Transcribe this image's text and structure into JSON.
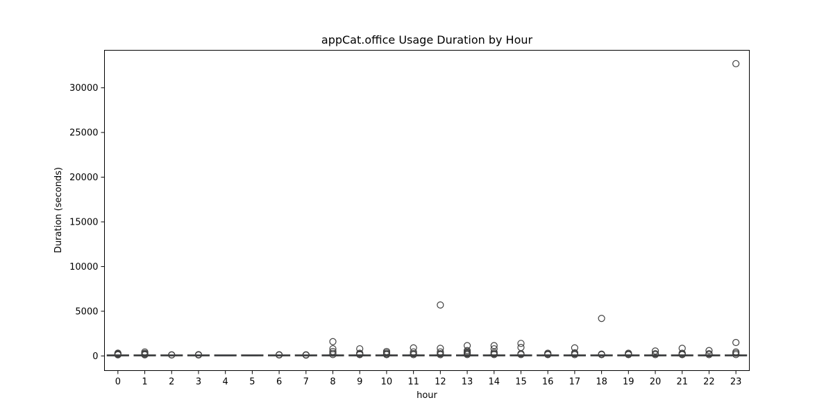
{
  "chart_data": {
    "type": "box",
    "title": "appCat.office Usage Duration by Hour",
    "xlabel": "hour",
    "ylabel": "Duration (seconds)",
    "categories": [
      "0",
      "1",
      "2",
      "3",
      "4",
      "5",
      "6",
      "7",
      "8",
      "9",
      "10",
      "11",
      "12",
      "13",
      "14",
      "15",
      "16",
      "17",
      "18",
      "19",
      "20",
      "21",
      "22",
      "23"
    ],
    "ylim": [
      -1640,
      34200
    ],
    "yticks": [
      0,
      5000,
      10000,
      15000,
      20000,
      25000,
      30000
    ],
    "grid": false,
    "legend": "none",
    "colors": {
      "box_fill": "#3b75af",
      "line": "#3f3f3f",
      "outlier": "#3f3f3f"
    },
    "boxes": [
      {
        "hour": "0",
        "q1": 5,
        "median": 20,
        "q3": 45,
        "whisker_low": 1,
        "whisker_high": 100,
        "outliers": [
          120,
          180,
          250,
          310
        ]
      },
      {
        "hour": "1",
        "q1": 5,
        "median": 20,
        "q3": 45,
        "whisker_low": 1,
        "whisker_high": 100,
        "outliers": [
          120,
          200,
          300,
          450
        ]
      },
      {
        "hour": "2",
        "q1": 5,
        "median": 15,
        "q3": 35,
        "whisker_low": 1,
        "whisker_high": 80,
        "outliers": [
          100,
          130
        ]
      },
      {
        "hour": "3",
        "q1": 5,
        "median": 15,
        "q3": 35,
        "whisker_low": 1,
        "whisker_high": 80,
        "outliers": [
          100,
          150
        ]
      },
      {
        "hour": "4",
        "q1": 5,
        "median": 10,
        "q3": 20,
        "whisker_low": 1,
        "whisker_high": 40,
        "outliers": []
      },
      {
        "hour": "5",
        "q1": 5,
        "median": 15,
        "q3": 30,
        "whisker_low": 1,
        "whisker_high": 60,
        "outliers": []
      },
      {
        "hour": "6",
        "q1": 5,
        "median": 15,
        "q3": 35,
        "whisker_low": 1,
        "whisker_high": 80,
        "outliers": [
          100,
          140
        ]
      },
      {
        "hour": "7",
        "q1": 5,
        "median": 15,
        "q3": 35,
        "whisker_low": 1,
        "whisker_high": 80,
        "outliers": [
          90,
          110,
          130
        ]
      },
      {
        "hour": "8",
        "q1": 5,
        "median": 20,
        "q3": 50,
        "whisker_low": 1,
        "whisker_high": 110,
        "outliers": [
          150,
          300,
          500,
          800,
          1600
        ]
      },
      {
        "hour": "9",
        "q1": 5,
        "median": 20,
        "q3": 50,
        "whisker_low": 1,
        "whisker_high": 110,
        "outliers": [
          140,
          200,
          300,
          800
        ]
      },
      {
        "hour": "10",
        "q1": 5,
        "median": 20,
        "q3": 50,
        "whisker_low": 1,
        "whisker_high": 110,
        "outliers": [
          140,
          220,
          350,
          500
        ]
      },
      {
        "hour": "11",
        "q1": 5,
        "median": 20,
        "q3": 50,
        "whisker_low": 1,
        "whisker_high": 110,
        "outliers": [
          140,
          250,
          450,
          900
        ]
      },
      {
        "hour": "12",
        "q1": 5,
        "median": 20,
        "q3": 50,
        "whisker_low": 1,
        "whisker_high": 110,
        "outliers": [
          140,
          250,
          450,
          850,
          5700
        ]
      },
      {
        "hour": "13",
        "q1": 5,
        "median": 20,
        "q3": 50,
        "whisker_low": 1,
        "whisker_high": 110,
        "outliers": [
          150,
          250,
          350,
          450,
          600,
          1150
        ]
      },
      {
        "hour": "14",
        "q1": 5,
        "median": 20,
        "q3": 50,
        "whisker_low": 1,
        "whisker_high": 110,
        "outliers": [
          150,
          250,
          400,
          800,
          1150
        ]
      },
      {
        "hour": "15",
        "q1": 5,
        "median": 20,
        "q3": 50,
        "whisker_low": 1,
        "whisker_high": 110,
        "outliers": [
          150,
          250,
          950,
          1400
        ]
      },
      {
        "hour": "16",
        "q1": 5,
        "median": 20,
        "q3": 50,
        "whisker_low": 1,
        "whisker_high": 110,
        "outliers": [
          140,
          200,
          300
        ]
      },
      {
        "hour": "17",
        "q1": 5,
        "median": 20,
        "q3": 50,
        "whisker_low": 1,
        "whisker_high": 110,
        "outliers": [
          140,
          250,
          350,
          900
        ]
      },
      {
        "hour": "18",
        "q1": 5,
        "median": 20,
        "q3": 50,
        "whisker_low": 1,
        "whisker_high": 110,
        "outliers": [
          140,
          200,
          4200
        ]
      },
      {
        "hour": "19",
        "q1": 5,
        "median": 20,
        "q3": 50,
        "whisker_low": 1,
        "whisker_high": 110,
        "outliers": [
          140,
          200,
          300
        ]
      },
      {
        "hour": "20",
        "q1": 5,
        "median": 20,
        "q3": 50,
        "whisker_low": 1,
        "whisker_high": 110,
        "outliers": [
          140,
          250,
          550
        ]
      },
      {
        "hour": "21",
        "q1": 5,
        "median": 20,
        "q3": 50,
        "whisker_low": 1,
        "whisker_high": 110,
        "outliers": [
          140,
          200,
          300,
          850
        ]
      },
      {
        "hour": "22",
        "q1": 5,
        "median": 20,
        "q3": 50,
        "whisker_low": 1,
        "whisker_high": 110,
        "outliers": [
          140,
          250,
          600
        ]
      },
      {
        "hour": "23",
        "q1": 5,
        "median": 20,
        "q3": 50,
        "whisker_low": 1,
        "whisker_high": 110,
        "outliers": [
          150,
          300,
          450,
          1500,
          32700
        ]
      }
    ]
  }
}
